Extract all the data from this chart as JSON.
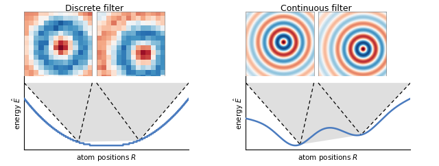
{
  "title_left": "Discrete filter",
  "title_right": "Continuous filter",
  "xlabel": "atom positions $R$",
  "ylabel": "energy $\\hat{E}$",
  "line_color": "#4a7bbf",
  "line_width": 1.8,
  "figure_bg": "#ffffff",
  "title_fontsize": 9,
  "label_fontsize": 7.5,
  "tick_color": "none"
}
